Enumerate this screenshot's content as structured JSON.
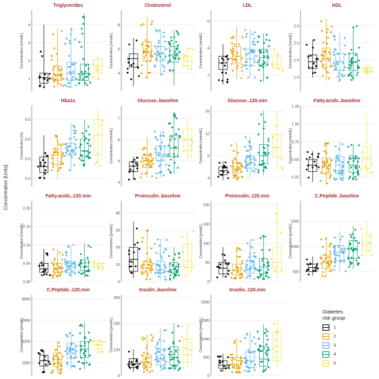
{
  "figure": {
    "y_axis_title": "Concentration [Units]",
    "legend": {
      "title_line1": "Diabetes",
      "title_line2": "risk group",
      "groups": [
        {
          "label": "1",
          "color": "#000000"
        },
        {
          "label": "2",
          "color": "#E69F00"
        },
        {
          "label": "3",
          "color": "#56B4E9"
        },
        {
          "label": "4",
          "color": "#009E73"
        },
        {
          "label": "5",
          "color": "#F0E442"
        }
      ]
    }
  },
  "chart_data": [
    {
      "type": "box",
      "title": "Triglycerides",
      "ylabel": "Concentration [mmol/L]",
      "ylim": [
        0.3,
        4.8
      ],
      "ticks": [
        1,
        2,
        3,
        4
      ],
      "tick_labels": [
        "1",
        "2",
        "3",
        "4"
      ],
      "groups": [
        {
          "group": "1",
          "q1": 0.75,
          "median": 1.05,
          "q3": 1.3,
          "min": 0.5,
          "max": 4.0
        },
        {
          "group": "2",
          "q1": 0.9,
          "median": 1.2,
          "q3": 1.7,
          "min": 0.5,
          "max": 3.8
        },
        {
          "group": "3",
          "q1": 0.9,
          "median": 1.3,
          "q3": 1.9,
          "min": 0.5,
          "max": 3.9
        },
        {
          "group": "4",
          "q1": 0.9,
          "median": 1.3,
          "q3": 1.8,
          "min": 0.6,
          "max": 4.6
        },
        {
          "group": "5",
          "q1": 1.3,
          "median": 1.7,
          "q3": 2.1,
          "min": 0.9,
          "max": 2.3
        }
      ]
    },
    {
      "type": "box",
      "title": "Cholesterol",
      "ylabel": "Concentration [mmol/L]",
      "ylim": [
        2.5,
        9.2
      ],
      "ticks": [
        4,
        6,
        8
      ],
      "tick_labels": [
        "4",
        "6",
        "8"
      ],
      "groups": [
        {
          "group": "1",
          "q1": 4.5,
          "median": 5.2,
          "q3": 5.6,
          "min": 2.9,
          "max": 6.9
        },
        {
          "group": "2",
          "q1": 5.0,
          "median": 5.8,
          "q3": 6.6,
          "min": 3.5,
          "max": 8.7
        },
        {
          "group": "3",
          "q1": 5.0,
          "median": 5.6,
          "q3": 6.2,
          "min": 3.8,
          "max": 7.6
        },
        {
          "group": "4",
          "q1": 4.9,
          "median": 5.5,
          "q3": 6.2,
          "min": 3.0,
          "max": 7.6
        },
        {
          "group": "5",
          "q1": 4.6,
          "median": 5.0,
          "q3": 5.4,
          "min": 4.2,
          "max": 6.2
        }
      ]
    },
    {
      "type": "box",
      "title": "LDL",
      "ylabel": "Concentration [mmol/L]",
      "ylim": [
        0.8,
        6.8
      ],
      "ticks": [
        2,
        4,
        6
      ],
      "tick_labels": [
        "2",
        "4",
        "6"
      ],
      "groups": [
        {
          "group": "1",
          "q1": 2.4,
          "median": 2.9,
          "q3": 3.4,
          "min": 1.3,
          "max": 4.3
        },
        {
          "group": "2",
          "q1": 2.9,
          "median": 3.4,
          "q3": 4.1,
          "min": 1.7,
          "max": 5.6
        },
        {
          "group": "3",
          "q1": 2.7,
          "median": 3.2,
          "q3": 3.9,
          "min": 1.8,
          "max": 5.4
        },
        {
          "group": "4",
          "q1": 2.7,
          "median": 3.3,
          "q3": 3.9,
          "min": 1.5,
          "max": 5.1
        },
        {
          "group": "5",
          "q1": 2.5,
          "median": 2.8,
          "q3": 3.5,
          "min": 2.3,
          "max": 3.9
        }
      ]
    },
    {
      "type": "box",
      "title": "HDL",
      "ylabel": "Concentration [mmol/L]",
      "ylim": [
        0.6,
        2.95
      ],
      "ticks": [
        1.0,
        1.5,
        2.0,
        2.5
      ],
      "tick_labels": [
        "1.0",
        "1.5",
        "2.0",
        "2.5"
      ],
      "groups": [
        {
          "group": "1",
          "q1": 1.25,
          "median": 1.45,
          "q3": 1.65,
          "min": 1.0,
          "max": 2.1
        },
        {
          "group": "2",
          "q1": 1.3,
          "median": 1.55,
          "q3": 1.85,
          "min": 0.9,
          "max": 2.7
        },
        {
          "group": "3",
          "q1": 1.2,
          "median": 1.45,
          "q3": 1.7,
          "min": 0.9,
          "max": 2.3
        },
        {
          "group": "4",
          "q1": 1.2,
          "median": 1.45,
          "q3": 1.7,
          "min": 0.9,
          "max": 2.5
        },
        {
          "group": "5",
          "q1": 1.15,
          "median": 1.25,
          "q3": 1.3,
          "min": 1.1,
          "max": 1.4
        }
      ]
    },
    {
      "type": "box",
      "title": "Hba1c",
      "ylabel": "Concentration [%]",
      "ylim": [
        4.8,
        6.85
      ],
      "ticks": [
        5.0,
        5.5,
        6.0,
        6.5
      ],
      "tick_labels": [
        "5.0",
        "5.5",
        "6.0",
        "6.5"
      ],
      "groups": [
        {
          "group": "1",
          "q1": 5.15,
          "median": 5.3,
          "q3": 5.55,
          "min": 5.0,
          "max": 6.1
        },
        {
          "group": "2",
          "q1": 5.35,
          "median": 5.6,
          "q3": 5.75,
          "min": 5.0,
          "max": 6.1
        },
        {
          "group": "3",
          "q1": 5.6,
          "median": 5.7,
          "q3": 5.9,
          "min": 5.2,
          "max": 6.4
        },
        {
          "group": "4",
          "q1": 5.55,
          "median": 5.7,
          "q3": 6.0,
          "min": 5.3,
          "max": 6.5
        },
        {
          "group": "5",
          "q1": 5.6,
          "median": 6.1,
          "q3": 6.5,
          "min": 5.3,
          "max": 6.8
        }
      ]
    },
    {
      "type": "box",
      "title": "Glucose..baseline",
      "ylabel": "Concentration [mmol/L]",
      "ylim": [
        3.8,
        7.6
      ],
      "ticks": [
        4,
        5,
        6,
        7
      ],
      "tick_labels": [
        "4",
        "5",
        "6",
        "7"
      ],
      "groups": [
        {
          "group": "1",
          "q1": 4.5,
          "median": 4.75,
          "q3": 4.95,
          "min": 4.1,
          "max": 5.2
        },
        {
          "group": "2",
          "q1": 4.7,
          "median": 5.0,
          "q3": 5.3,
          "min": 4.2,
          "max": 6.1
        },
        {
          "group": "3",
          "q1": 5.0,
          "median": 5.3,
          "q3": 5.7,
          "min": 4.2,
          "max": 6.4
        },
        {
          "group": "4",
          "q1": 5.2,
          "median": 5.6,
          "q3": 6.2,
          "min": 4.4,
          "max": 7.3
        },
        {
          "group": "5",
          "q1": 5.5,
          "median": 6.0,
          "q3": 6.5,
          "min": 5.0,
          "max": 7.0
        }
      ]
    },
    {
      "type": "box",
      "title": "Glucose..120.min",
      "ylabel": "Concentration [mmol/L]",
      "ylim": [
        2.5,
        17
      ],
      "ticks": [
        4,
        8,
        12,
        16
      ],
      "tick_labels": [
        "4",
        "8",
        "12",
        "16"
      ],
      "groups": [
        {
          "group": "1",
          "q1": 4.6,
          "median": 5.3,
          "q3": 6.0,
          "min": 3.6,
          "max": 7.0
        },
        {
          "group": "2",
          "q1": 4.9,
          "median": 5.6,
          "q3": 6.8,
          "min": 3.5,
          "max": 10.5
        },
        {
          "group": "3",
          "q1": 5.8,
          "median": 6.8,
          "q3": 8.0,
          "min": 4.1,
          "max": 11.5
        },
        {
          "group": "4",
          "q1": 6.5,
          "median": 8.0,
          "q3": 10.0,
          "min": 4.5,
          "max": 16.0
        },
        {
          "group": "5",
          "q1": 7.8,
          "median": 9.5,
          "q3": 11.8,
          "min": 5.5,
          "max": 16.0
        }
      ]
    },
    {
      "type": "box",
      "title": "Fatty.acids..baseline",
      "ylabel": "Concentration [mmol/L]",
      "ylim": [
        0.12,
        1.26
      ],
      "ticks": [
        0.25,
        0.5,
        0.75,
        1.0,
        1.25
      ],
      "tick_labels": [
        "0.25",
        "0.50",
        "0.75",
        "1.00",
        "1.25"
      ],
      "groups": [
        {
          "group": "1",
          "q1": 0.33,
          "median": 0.42,
          "q3": 0.5,
          "min": 0.18,
          "max": 0.62
        },
        {
          "group": "2",
          "q1": 0.3,
          "median": 0.4,
          "q3": 0.52,
          "min": 0.15,
          "max": 0.75
        },
        {
          "group": "3",
          "q1": 0.3,
          "median": 0.42,
          "q3": 0.54,
          "min": 0.2,
          "max": 0.75
        },
        {
          "group": "4",
          "q1": 0.32,
          "median": 0.42,
          "q3": 0.55,
          "min": 0.2,
          "max": 0.72
        },
        {
          "group": "5",
          "q1": 0.38,
          "median": 0.52,
          "q3": 0.68,
          "min": 0.25,
          "max": 1.15
        }
      ]
    },
    {
      "type": "box",
      "title": "Fatty.acids..120.min",
      "ylabel": "Concentration [mmol/L]",
      "ylim": [
        0.0,
        0.22
      ],
      "ticks": [
        0.0,
        0.05,
        0.1,
        0.15,
        0.2
      ],
      "tick_labels": [
        "0.00",
        "0.05",
        "0.10",
        "0.15",
        "0.20"
      ],
      "groups": [
        {
          "group": "1",
          "q1": 0.025,
          "median": 0.035,
          "q3": 0.05,
          "min": 0.015,
          "max": 0.09
        },
        {
          "group": "2",
          "q1": 0.025,
          "median": 0.035,
          "q3": 0.05,
          "min": 0.01,
          "max": 0.09
        },
        {
          "group": "3",
          "q1": 0.025,
          "median": 0.04,
          "q3": 0.055,
          "min": 0.01,
          "max": 0.1
        },
        {
          "group": "4",
          "q1": 0.03,
          "median": 0.04,
          "q3": 0.06,
          "min": 0.01,
          "max": 0.105
        },
        {
          "group": "5",
          "q1": 0.04,
          "median": 0.045,
          "q3": 0.05,
          "min": 0.03,
          "max": 0.06
        }
      ]
    },
    {
      "type": "box",
      "title": "Proinsulin..baseline",
      "ylabel": "Concentration [pmol/L]",
      "ylim": [
        0,
        47
      ],
      "ticks": [
        0,
        10,
        20,
        30,
        40
      ],
      "tick_labels": [
        "0",
        "10",
        "20",
        "30",
        "40"
      ],
      "groups": [
        {
          "group": "1",
          "q1": 6,
          "median": 13,
          "q3": 20,
          "min": 2,
          "max": 35
        },
        {
          "group": "2",
          "q1": 5,
          "median": 8,
          "q3": 12,
          "min": 1,
          "max": 30
        },
        {
          "group": "3",
          "q1": 5,
          "median": 7,
          "q3": 12,
          "min": 1,
          "max": 25
        },
        {
          "group": "4",
          "q1": 5,
          "median": 7,
          "q3": 11,
          "min": 1,
          "max": 20
        },
        {
          "group": "5",
          "q1": 8,
          "median": 12,
          "q3": 22,
          "min": 3,
          "max": 30
        }
      ]
    },
    {
      "type": "box",
      "title": "Proinsulin..120.min",
      "ylabel": "Concentration [pmol/L]",
      "ylim": [
        0,
        210
      ],
      "ticks": [
        0,
        50,
        100,
        150,
        200
      ],
      "tick_labels": [
        "0",
        "50",
        "100",
        "150",
        "200"
      ],
      "groups": [
        {
          "group": "1",
          "q1": 20,
          "median": 35,
          "q3": 50,
          "min": 10,
          "max": 90
        },
        {
          "group": "2",
          "q1": 18,
          "median": 30,
          "q3": 45,
          "min": 5,
          "max": 90
        },
        {
          "group": "3",
          "q1": 22,
          "median": 35,
          "q3": 55,
          "min": 5,
          "max": 110
        },
        {
          "group": "4",
          "q1": 20,
          "median": 38,
          "q3": 60,
          "min": 5,
          "max": 120
        },
        {
          "group": "5",
          "q1": 25,
          "median": 50,
          "q3": 90,
          "min": 10,
          "max": 205
        }
      ]
    },
    {
      "type": "box",
      "title": "C.Peptide..baseline",
      "ylabel": "Concentration [pmol/L]",
      "ylim": [
        300,
        1900
      ],
      "ticks": [
        500,
        1000,
        1500
      ],
      "tick_labels": [
        "500",
        "1000",
        "1500"
      ],
      "groups": [
        {
          "group": "1",
          "q1": 500,
          "median": 580,
          "q3": 650,
          "min": 420,
          "max": 800
        },
        {
          "group": "2",
          "q1": 560,
          "median": 680,
          "q3": 820,
          "min": 400,
          "max": 1200
        },
        {
          "group": "3",
          "q1": 720,
          "median": 880,
          "q3": 1020,
          "min": 500,
          "max": 1300
        },
        {
          "group": "4",
          "q1": 760,
          "median": 940,
          "q3": 1110,
          "min": 550,
          "max": 1400
        },
        {
          "group": "5",
          "q1": 920,
          "median": 1050,
          "q3": 1250,
          "min": 800,
          "max": 1500
        }
      ]
    },
    {
      "type": "box",
      "title": "C.Peptide..120.min",
      "ylabel": "Concentration [pmol/L]",
      "ylim": [
        800,
        8400
      ],
      "ticks": [
        2000,
        4000,
        6000,
        8000
      ],
      "tick_labels": [
        "2000",
        "4000",
        "6000",
        "8000"
      ],
      "groups": [
        {
          "group": "1",
          "q1": 1700,
          "median": 2200,
          "q3": 2700,
          "min": 1000,
          "max": 3200
        },
        {
          "group": "2",
          "q1": 1700,
          "median": 2300,
          "q3": 2900,
          "min": 1000,
          "max": 4000
        },
        {
          "group": "3",
          "q1": 2400,
          "median": 3200,
          "q3": 3800,
          "min": 1400,
          "max": 5000
        },
        {
          "group": "4",
          "q1": 2500,
          "median": 3300,
          "q3": 4000,
          "min": 1400,
          "max": 5800
        },
        {
          "group": "5",
          "q1": 3300,
          "median": 3700,
          "q3": 4100,
          "min": 2800,
          "max": 4300
        }
      ]
    },
    {
      "type": "box",
      "title": "Insulin..baseline",
      "ylabel": "Concentration [pmol/L]",
      "ylim": [
        0,
        310
      ],
      "ticks": [
        0,
        100,
        200,
        300
      ],
      "tick_labels": [
        "0",
        "100",
        "200",
        "300"
      ],
      "groups": [
        {
          "group": "1",
          "q1": 30,
          "median": 45,
          "q3": 65,
          "min": 15,
          "max": 100
        },
        {
          "group": "2",
          "q1": 30,
          "median": 50,
          "q3": 80,
          "min": 10,
          "max": 160
        },
        {
          "group": "3",
          "q1": 40,
          "median": 65,
          "q3": 100,
          "min": 15,
          "max": 180
        },
        {
          "group": "4",
          "q1": 40,
          "median": 70,
          "q3": 110,
          "min": 20,
          "max": 200
        },
        {
          "group": "5",
          "q1": 50,
          "median": 80,
          "q3": 140,
          "min": 30,
          "max": 200
        }
      ]
    },
    {
      "type": "box",
      "title": "Insulin..120.min",
      "ylabel": "Concentration [pmol/L]",
      "ylim": [
        0,
        2200
      ],
      "ticks": [
        0,
        500,
        1000,
        1500,
        2000
      ],
      "tick_labels": [
        "0",
        "500",
        "1000",
        "1500",
        "2000"
      ],
      "groups": [
        {
          "group": "1",
          "q1": 200,
          "median": 280,
          "q3": 400,
          "min": 100,
          "max": 600
        },
        {
          "group": "2",
          "q1": 200,
          "median": 300,
          "q3": 500,
          "min": 80,
          "max": 1000
        },
        {
          "group": "3",
          "q1": 220,
          "median": 400,
          "q3": 650,
          "min": 100,
          "max": 1200
        },
        {
          "group": "4",
          "q1": 250,
          "median": 450,
          "q3": 800,
          "min": 100,
          "max": 1400
        },
        {
          "group": "5",
          "q1": 400,
          "median": 800,
          "q3": 1200,
          "min": 200,
          "max": 1500
        }
      ]
    }
  ]
}
